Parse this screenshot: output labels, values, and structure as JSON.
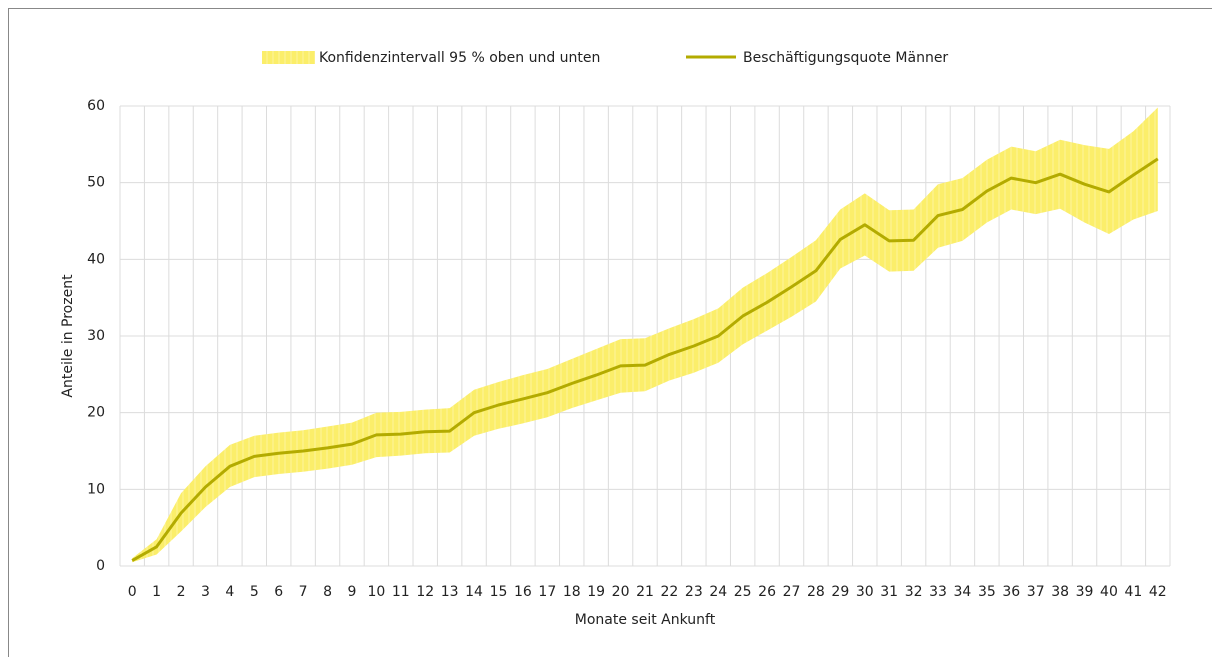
{
  "chart_data": {
    "type": "line",
    "x_label": "Monate seit Ankunft",
    "y_label": "Anteile in Prozent",
    "categories": [
      "0",
      "1",
      "2",
      "3",
      "4",
      "5",
      "6",
      "7",
      "8",
      "9",
      "10",
      "11",
      "12",
      "13",
      "14",
      "15",
      "16",
      "17",
      "18",
      "19",
      "20",
      "21",
      "22",
      "23",
      "24",
      "25",
      "26",
      "27",
      "28",
      "29",
      "30",
      "31",
      "32",
      "33",
      "34",
      "35",
      "36",
      "37",
      "38",
      "39",
      "40",
      "41",
      "42"
    ],
    "series": [
      {
        "name": "Konfidenzintervall 95 % oben und unten",
        "type": "band",
        "color": "#fbee6a",
        "upper": [
          1.0,
          3.5,
          9.5,
          13,
          15.8,
          17,
          17.4,
          17.7,
          18.2,
          18.7,
          20,
          20.1,
          20.4,
          20.6,
          23,
          24,
          24.9,
          25.7,
          27,
          28.3,
          29.6,
          29.7,
          31,
          32.2,
          33.6,
          36.3,
          38.2,
          40.3,
          42.5,
          46.5,
          48.6,
          46.4,
          46.5,
          49.8,
          50.6,
          53,
          54.7,
          54.1,
          55.6,
          54.9,
          54.4,
          56.7,
          59.8
        ],
        "lower": [
          0.5,
          1.5,
          4.5,
          7.7,
          10.3,
          11.6,
          12,
          12.3,
          12.7,
          13.2,
          14.2,
          14.4,
          14.7,
          14.8,
          17,
          17.9,
          18.6,
          19.4,
          20.6,
          21.6,
          22.6,
          22.8,
          24.2,
          25.2,
          26.5,
          28.9,
          30.7,
          32.5,
          34.5,
          38.8,
          40.5,
          38.4,
          38.5,
          41.5,
          42.4,
          44.8,
          46.5,
          45.9,
          46.6,
          44.8,
          43.3,
          45.2,
          46.3
        ]
      },
      {
        "name": "Beschäftigungsquote Männer",
        "type": "line",
        "color": "#b3ab00",
        "values": [
          0.7,
          2.5,
          6.9,
          10.3,
          13.0,
          14.3,
          14.7,
          15.0,
          15.4,
          15.9,
          17.1,
          17.2,
          17.5,
          17.6,
          20.0,
          21.0,
          21.8,
          22.6,
          23.8,
          24.9,
          26.1,
          26.2,
          27.6,
          28.7,
          30.0,
          32.6,
          34.4,
          36.4,
          38.5,
          42.6,
          44.5,
          42.4,
          42.5,
          45.7,
          46.5,
          48.9,
          50.6,
          50.0,
          51.1,
          49.8,
          48.8,
          51.0,
          53.1
        ]
      }
    ],
    "ylim": [
      0,
      60
    ],
    "yticks": [
      0,
      10,
      20,
      30,
      40,
      50,
      60
    ],
    "grid": true,
    "legend": "top"
  }
}
